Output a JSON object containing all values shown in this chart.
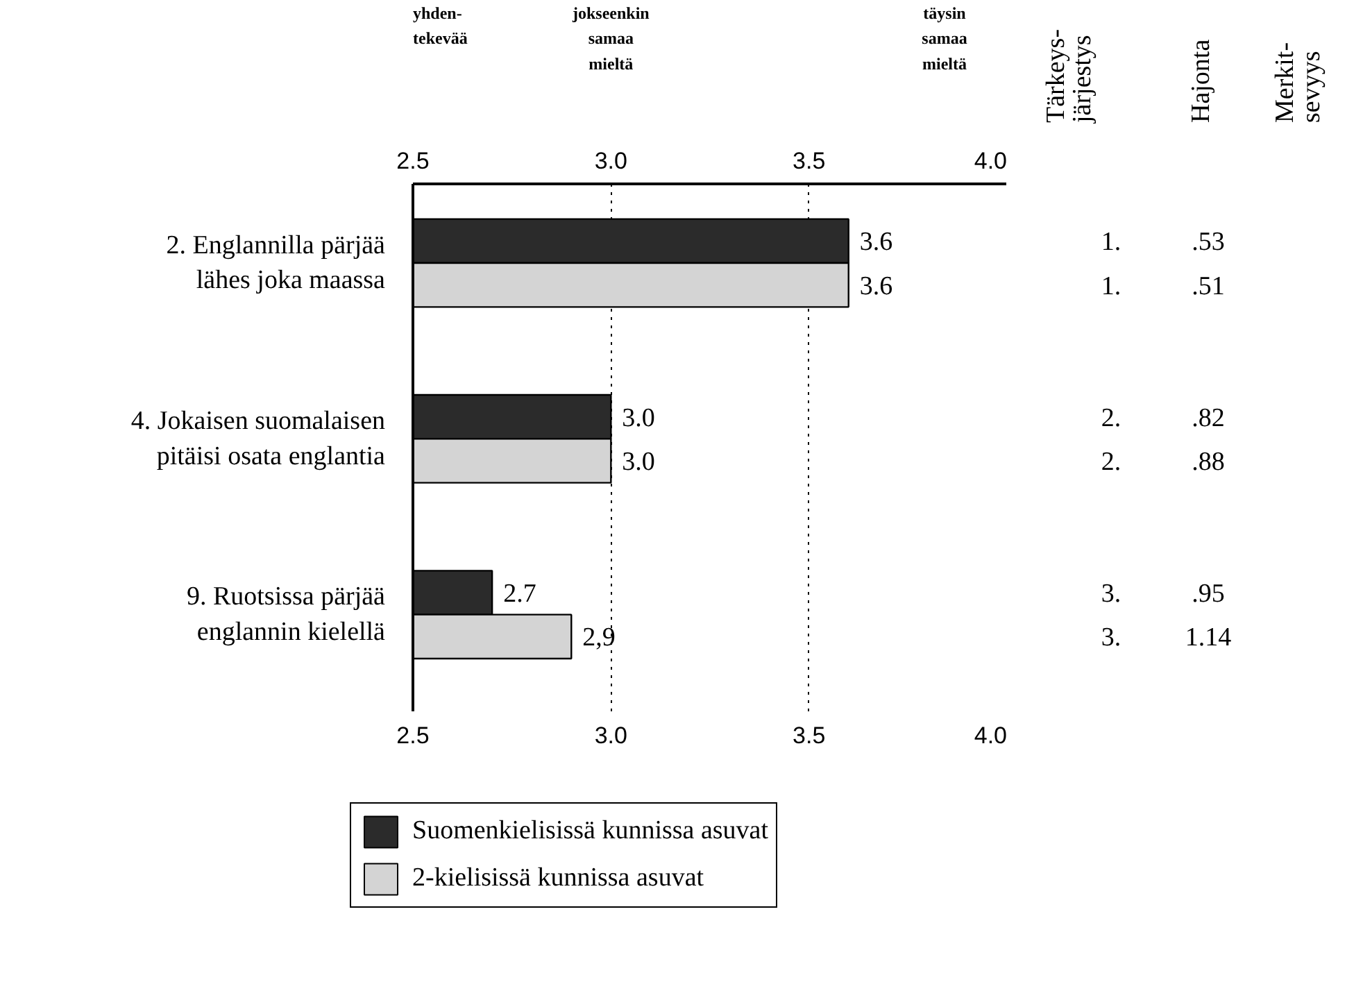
{
  "chart_data": {
    "type": "bar",
    "orientation": "horizontal",
    "categories": [
      "2. Englannilla pärjää\nlähes joka maassa",
      "4. Jokaisen suomalaisen\npitäisi osata englantia",
      "9. Ruotsissa pärjää\nenglannin kielellä"
    ],
    "series": [
      {
        "name": "Suomenkielisissä kunnissa asuvat",
        "color": "#2b2b2b",
        "values": [
          3.6,
          3.0,
          2.7
        ],
        "value_labels": [
          "3.6",
          "3.0",
          "2.7"
        ]
      },
      {
        "name": "2-kielisissä kunnissa asuvat",
        "color": "#d4d4d4",
        "values": [
          3.6,
          3.0,
          2.9
        ],
        "value_labels": [
          "3.6",
          "3.0",
          "2,9"
        ]
      }
    ],
    "xlim": [
      2.5,
      4.0
    ],
    "xticks": [
      {
        "value": 2.5,
        "label": "2.5"
      },
      {
        "value": 3.0,
        "label": "3.0"
      },
      {
        "value": 3.5,
        "label": "3.5"
      },
      {
        "value": 4.0,
        "label": "4.0"
      }
    ],
    "x2lim": [
      2.5,
      4.0
    ],
    "x2ticks": [
      {
        "value": 2.5,
        "label": "2.5"
      },
      {
        "value": 3.0,
        "label": "3.0"
      },
      {
        "value": 3.5,
        "label": "3.5"
      },
      {
        "value": 4.0,
        "label": "4.0"
      }
    ],
    "grid": "x",
    "legend": "bottom",
    "annotations": [
      "yhden-\ntekevää",
      "jokseenkin\nsamaa\nmieltä",
      "täysin\nsamaa\nmieltä",
      "Tärkeys-\njärjestys",
      "Hajonta",
      "Merkit-\nsevyys",
      "1.",
      ".53",
      "1.",
      ".51",
      "2.",
      ".82",
      "2.",
      ".88",
      "3.",
      ".95",
      "3.",
      "1.14"
    ]
  }
}
